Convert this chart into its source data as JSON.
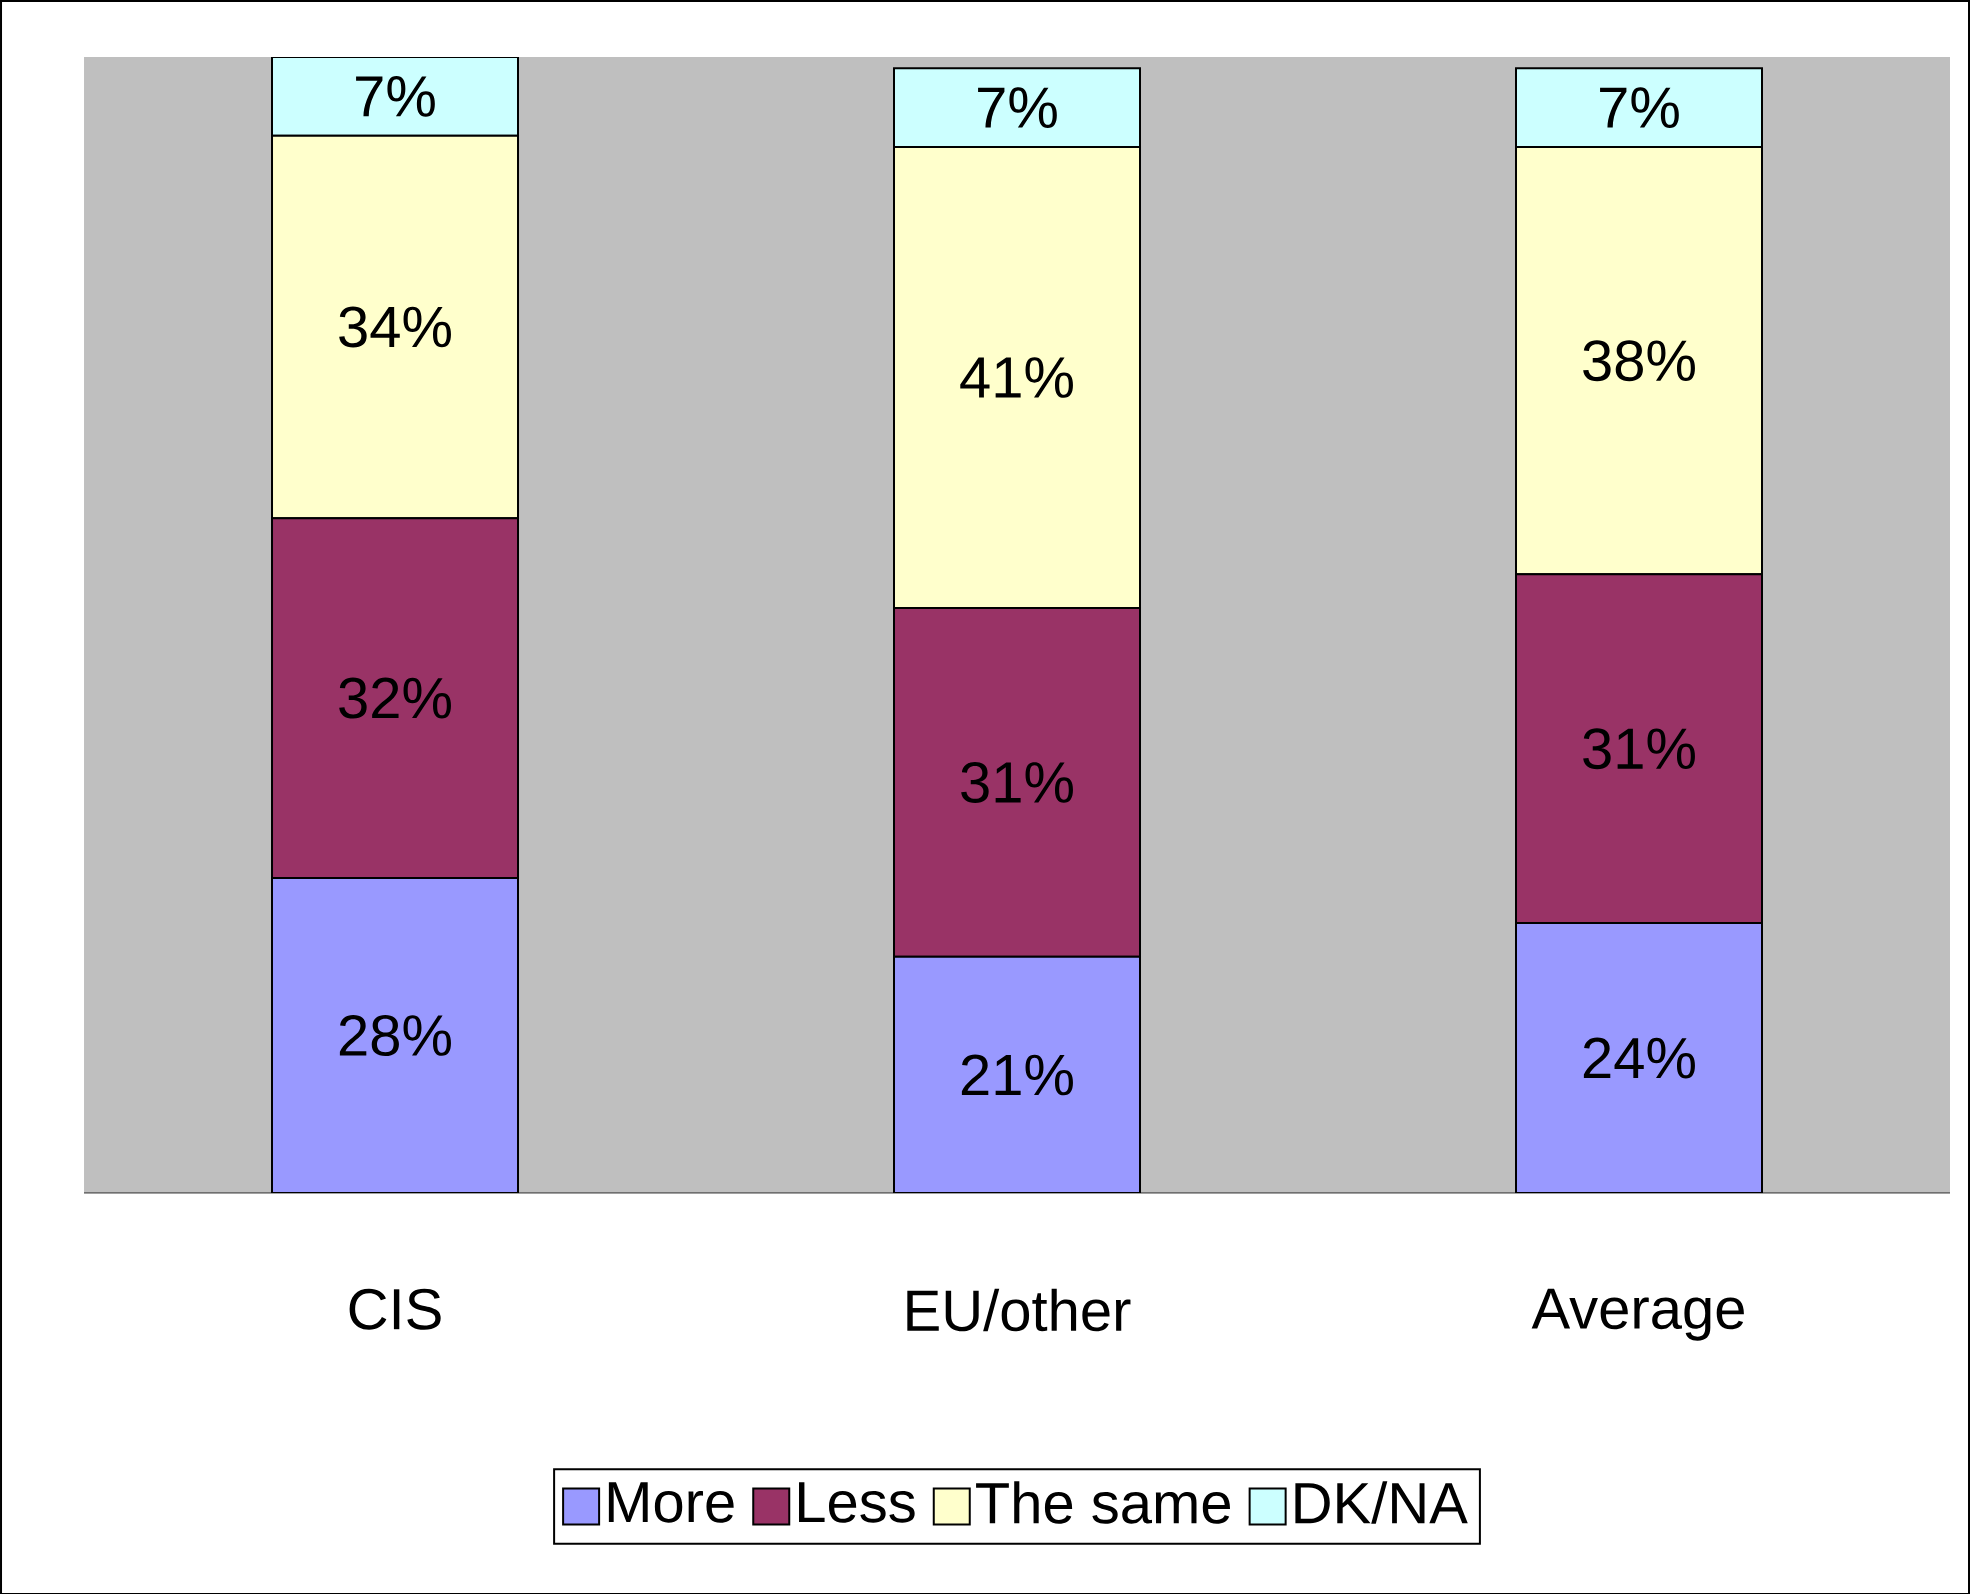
{
  "chart_data": {
    "type": "bar",
    "stacked": true,
    "categories": [
      "CIS",
      "EU/other",
      "Average"
    ],
    "series": [
      {
        "name": "More",
        "color": "#9999ff",
        "values": [
          28,
          21,
          24
        ],
        "value_labels": [
          "28%",
          "21%",
          "24%"
        ]
      },
      {
        "name": "Less",
        "color": "#993366",
        "values": [
          32,
          31,
          31
        ],
        "value_labels": [
          "32%",
          "31%",
          "31%"
        ]
      },
      {
        "name": "The same",
        "color": "#ffffcc",
        "values": [
          34,
          41,
          38
        ],
        "value_labels": [
          "34%",
          "41%",
          "38%"
        ]
      },
      {
        "name": "DK/NA",
        "color": "#ccffff",
        "values": [
          7,
          7,
          7
        ],
        "value_labels": [
          "7%",
          "7%",
          "7%"
        ]
      }
    ],
    "legend": "bottom",
    "grid": false,
    "tick_labels": "x"
  }
}
